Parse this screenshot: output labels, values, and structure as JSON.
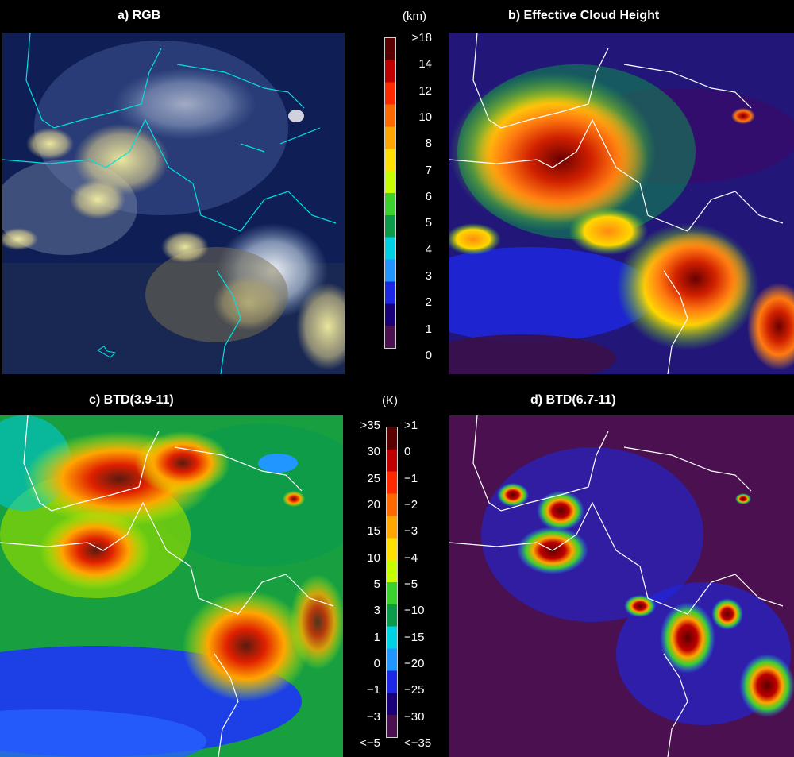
{
  "panels": [
    {
      "id": "a",
      "title": "a) RGB"
    },
    {
      "id": "b",
      "title": "b) Effective Cloud Height"
    },
    {
      "id": "c",
      "title": "c) BTD(3.9-11)"
    },
    {
      "id": "d",
      "title": "d) BTD(6.7-11)"
    }
  ],
  "colorbar_height": {
    "unit": "(km)",
    "ticks": [
      ">18",
      "14",
      "12",
      "10",
      "8",
      "7",
      "6",
      "5",
      "4",
      "3",
      "2",
      "1",
      "0"
    ],
    "colors": [
      "#5a0000",
      "#c00000",
      "#ff2a00",
      "#ff6a00",
      "#ffa600",
      "#ffe000",
      "#c8ff00",
      "#3bd12e",
      "#0c9b4a",
      "#00d2e6",
      "#2196ff",
      "#1c28e6",
      "#190078",
      "#4a1050"
    ]
  },
  "colorbar_btd": {
    "unit": "(K)",
    "left_ticks": [
      ">35",
      "30",
      "25",
      "20",
      "15",
      "10",
      "5",
      "3",
      "1",
      "0",
      "−1",
      "−3",
      "<−5"
    ],
    "right_ticks": [
      ">1",
      "0",
      "−1",
      "−2",
      "−3",
      "−4",
      "−5",
      "−10",
      "−15",
      "−20",
      "−25",
      "−30",
      "<−35"
    ],
    "colors": [
      "#5a0000",
      "#c00000",
      "#ff2a00",
      "#ff6a00",
      "#ffa600",
      "#ffe000",
      "#c8ff00",
      "#3bd12e",
      "#0c9b4a",
      "#00d2e6",
      "#2196ff",
      "#1c28e6",
      "#190078",
      "#4a1050"
    ]
  }
}
